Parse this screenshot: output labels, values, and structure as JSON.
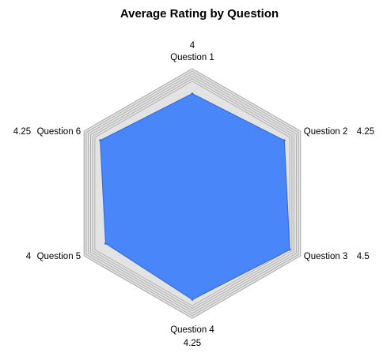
{
  "chart_data": {
    "type": "radar",
    "title": "Average Rating by Question",
    "categories": [
      "Question 1",
      "Question 2",
      "Question 3",
      "Question 4",
      "Question 5",
      "Question 6"
    ],
    "values": [
      4,
      4.25,
      4.5,
      4.25,
      4,
      4.25
    ],
    "value_labels": [
      "4",
      "4.25",
      "4.5",
      "4.25",
      "4",
      "4.25"
    ],
    "rmin": 0,
    "rmax": 5,
    "grid_levels": [
      4.5,
      4.6,
      4.7,
      4.8,
      4.9,
      5
    ],
    "legend": "none",
    "colors": {
      "fill": "#4886fa",
      "fill_edge": "#3a6ed8",
      "grid_fill": "#e3e3e3",
      "grid_line": "#a6a6a6",
      "background": "#ffffff"
    }
  }
}
